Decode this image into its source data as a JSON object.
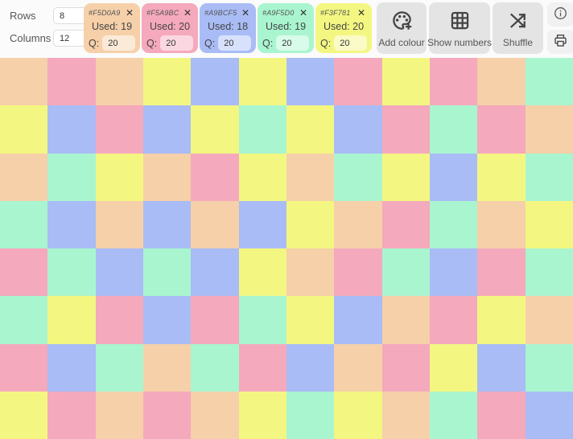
{
  "controls": {
    "rows_label": "Rows",
    "rows_value": "8",
    "columns_label": "Columns",
    "columns_value": "12"
  },
  "colour_cards": [
    {
      "hex": "#F5D0A9",
      "used": "Used: 19",
      "q_label": "Q:",
      "q_value": "20",
      "close_glyph": "✕"
    },
    {
      "hex": "#F5A9BC",
      "used": "Used: 20",
      "q_label": "Q:",
      "q_value": "20",
      "close_glyph": "✕"
    },
    {
      "hex": "#A9BCF5",
      "used": "Used: 18",
      "q_label": "Q:",
      "q_value": "20",
      "close_glyph": "✕"
    },
    {
      "hex": "#A9F5D0",
      "used": "Used: 19",
      "q_label": "Q:",
      "q_value": "20",
      "close_glyph": "✕"
    },
    {
      "hex": "#F3F781",
      "used": "Used: 20",
      "q_label": "Q:",
      "q_value": "20",
      "close_glyph": "✕"
    }
  ],
  "toolbar": {
    "add_colour_label": "Add colour",
    "show_numbers_label": "Show numbers",
    "shuffle_label": "Shuffle",
    "icon_names": [
      "palette-icon",
      "grid-icon",
      "shuffle-icon",
      "info-icon",
      "printer-icon"
    ],
    "icon_color": "#444444",
    "button_bg": "#e4e4e4"
  },
  "grid": {
    "rows": 8,
    "columns": 12,
    "palette": [
      "#F5D0A9",
      "#F5A9BC",
      "#A9BCF5",
      "#A9F5D0",
      "#F3F781"
    ],
    "cells": [
      [
        "#F5D0A9",
        "#F5A9BC",
        "#F5D0A9",
        "#F3F781",
        "#A9BCF5",
        "#F3F781",
        "#A9BCF5",
        "#F5A9BC",
        "#F3F781",
        "#F5A9BC",
        "#F5D0A9",
        "#A9F5D0"
      ],
      [
        "#F3F781",
        "#A9BCF5",
        "#F5A9BC",
        "#A9BCF5",
        "#F3F781",
        "#A9F5D0",
        "#F3F781",
        "#A9BCF5",
        "#F5A9BC",
        "#A9F5D0",
        "#F5A9BC",
        "#F5D0A9"
      ],
      [
        "#F5D0A9",
        "#A9F5D0",
        "#F3F781",
        "#F5D0A9",
        "#F5A9BC",
        "#F3F781",
        "#F5D0A9",
        "#A9F5D0",
        "#F3F781",
        "#A9BCF5",
        "#F3F781",
        "#A9F5D0"
      ],
      [
        "#A9F5D0",
        "#A9BCF5",
        "#F5D0A9",
        "#A9BCF5",
        "#F5D0A9",
        "#A9BCF5",
        "#F3F781",
        "#F5D0A9",
        "#F5A9BC",
        "#A9F5D0",
        "#F5D0A9",
        "#F3F781"
      ],
      [
        "#F5A9BC",
        "#A9F5D0",
        "#A9BCF5",
        "#A9F5D0",
        "#A9BCF5",
        "#F3F781",
        "#F5D0A9",
        "#F5A9BC",
        "#A9F5D0",
        "#A9BCF5",
        "#F5A9BC",
        "#A9F5D0"
      ],
      [
        "#A9F5D0",
        "#F3F781",
        "#F5A9BC",
        "#A9BCF5",
        "#F5A9BC",
        "#A9F5D0",
        "#F3F781",
        "#A9BCF5",
        "#F5D0A9",
        "#F5A9BC",
        "#F3F781",
        "#F5D0A9"
      ],
      [
        "#F5A9BC",
        "#A9BCF5",
        "#A9F5D0",
        "#F5D0A9",
        "#A9F5D0",
        "#F5A9BC",
        "#A9BCF5",
        "#F5D0A9",
        "#F5A9BC",
        "#F3F781",
        "#A9BCF5",
        "#A9F5D0"
      ],
      [
        "#F3F781",
        "#F5A9BC",
        "#F5D0A9",
        "#F5A9BC",
        "#F5D0A9",
        "#F3F781",
        "#A9F5D0",
        "#F3F781",
        "#F5D0A9",
        "#A9F5D0",
        "#F5A9BC",
        "#A9BCF5"
      ]
    ]
  }
}
